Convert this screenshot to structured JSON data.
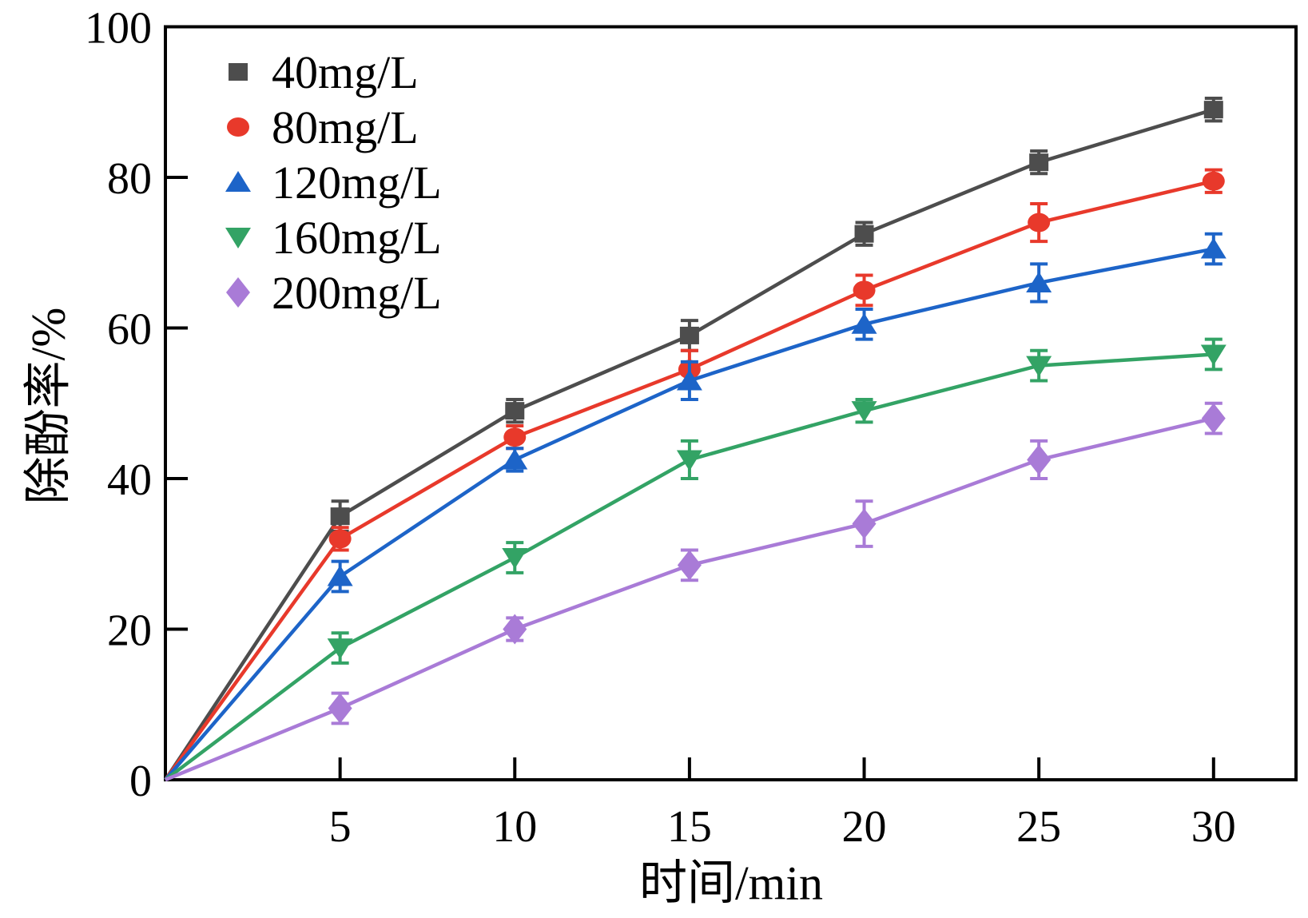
{
  "figure": {
    "background": "#ffffff",
    "axis_color": "#000000",
    "text_color": "#000000"
  },
  "chart_data": {
    "type": "line",
    "title": "",
    "xlabel": "时间/min",
    "ylabel": "除酚率/%",
    "x": [
      0,
      5,
      10,
      15,
      20,
      25,
      30
    ],
    "xticks": [
      5,
      10,
      15,
      20,
      25,
      30
    ],
    "yticks": [
      0,
      20,
      40,
      60,
      80,
      100
    ],
    "xlim": [
      0,
      32.36
    ],
    "ylim": [
      0,
      100
    ],
    "grid": false,
    "legend_position": "top-left",
    "error_bars": true,
    "series": [
      {
        "name": "40mg/L",
        "color": "#4d4d4d",
        "marker": "square",
        "values": [
          0,
          35,
          49,
          59,
          72.5,
          82,
          89
        ],
        "errors": [
          0,
          2,
          1.5,
          2,
          1.5,
          1.5,
          1.5
        ]
      },
      {
        "name": "80mg/L",
        "color": "#e8392b",
        "marker": "circle",
        "values": [
          0,
          32,
          45.5,
          54.5,
          65,
          74,
          79.5
        ],
        "errors": [
          0,
          1.5,
          1.5,
          2.5,
          2,
          2.5,
          1.5
        ]
      },
      {
        "name": "120mg/L",
        "color": "#1d64c8",
        "marker": "triangle-up",
        "values": [
          0,
          27,
          42.5,
          53,
          60.5,
          66,
          70.5
        ],
        "errors": [
          0,
          2,
          1.5,
          2.5,
          2,
          2.5,
          2
        ]
      },
      {
        "name": "160mg/L",
        "color": "#33a365",
        "marker": "triangle-down",
        "values": [
          0,
          17.5,
          29.5,
          42.5,
          49,
          55,
          56.5
        ],
        "errors": [
          0,
          2,
          2,
          2.5,
          1.5,
          2,
          2
        ]
      },
      {
        "name": "200mg/L",
        "color": "#a97bd7",
        "marker": "diamond",
        "values": [
          0,
          9.5,
          20,
          28.5,
          34,
          42.5,
          48
        ],
        "errors": [
          0,
          2,
          1.5,
          2,
          3,
          2.5,
          2
        ]
      }
    ]
  }
}
